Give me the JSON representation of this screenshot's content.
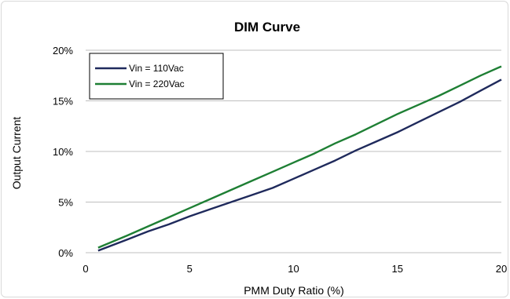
{
  "chart_data": {
    "type": "line",
    "title": "DIM Curve",
    "xlabel": "PMM Duty Ratio (%)",
    "ylabel": "Output Current",
    "xlim": [
      0,
      20
    ],
    "ylim": [
      0,
      20
    ],
    "x_ticks": [
      "0",
      "5",
      "10",
      "15",
      "20"
    ],
    "y_ticks": [
      "0%",
      "5%",
      "10%",
      "15%",
      "20%"
    ],
    "grid": "horizontal",
    "legend_position": "top-left",
    "series": [
      {
        "name": "Vin = 110Vac",
        "color": "#1f2a5c",
        "x": [
          0.6,
          2,
          3,
          4,
          5,
          6,
          7,
          8,
          9,
          10,
          11,
          12,
          13,
          14,
          15,
          16,
          17,
          18,
          19,
          20
        ],
        "y": [
          0.2,
          1.3,
          2.1,
          2.8,
          3.6,
          4.3,
          5.0,
          5.7,
          6.4,
          7.3,
          8.2,
          9.1,
          10.1,
          11.0,
          11.9,
          12.9,
          13.9,
          14.9,
          16.0,
          17.1
        ]
      },
      {
        "name": "Vin = 220Vac",
        "color": "#1e7f34",
        "x": [
          0.6,
          2,
          3,
          4,
          5,
          6,
          7,
          8,
          9,
          10,
          11,
          12,
          13,
          14,
          15,
          16,
          17,
          18,
          19,
          20
        ],
        "y": [
          0.5,
          1.7,
          2.6,
          3.5,
          4.4,
          5.3,
          6.2,
          7.1,
          8.0,
          8.9,
          9.8,
          10.8,
          11.7,
          12.7,
          13.7,
          14.6,
          15.5,
          16.5,
          17.5,
          18.4
        ]
      }
    ]
  }
}
